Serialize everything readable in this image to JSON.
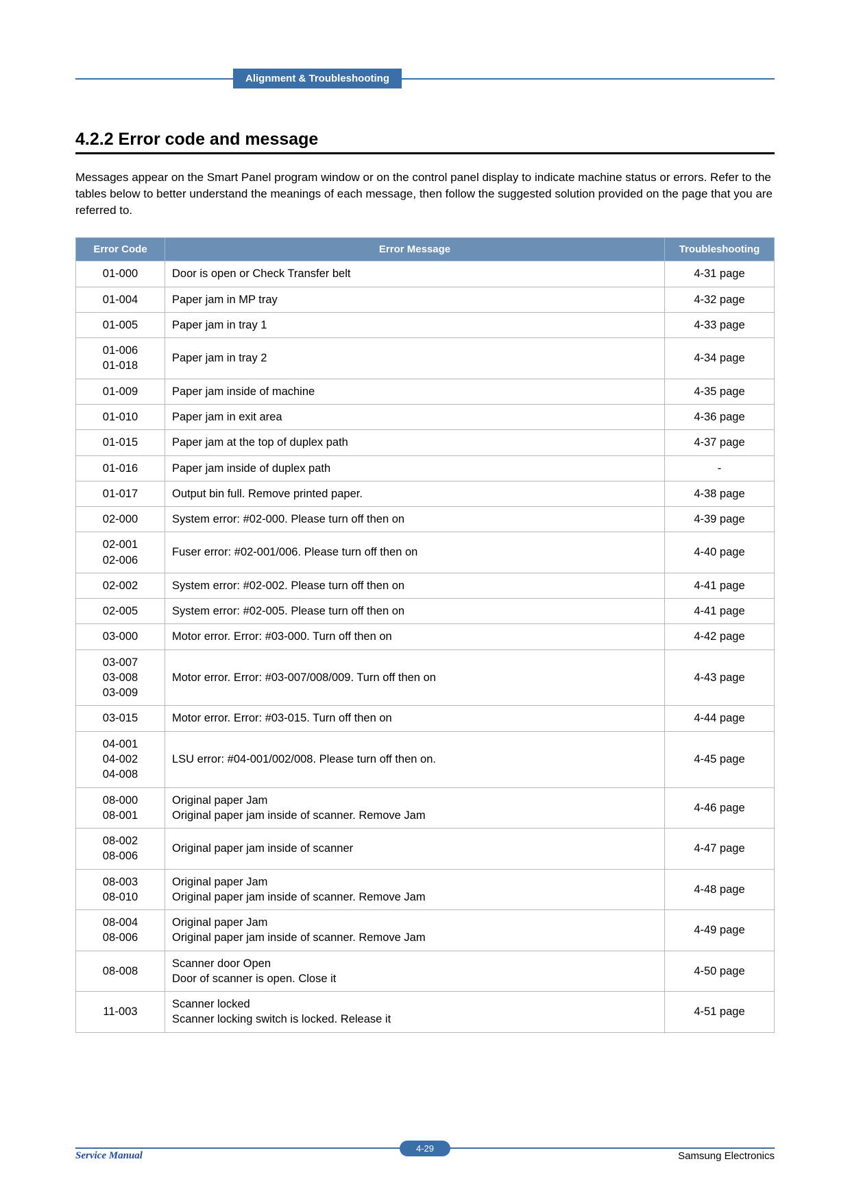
{
  "header": {
    "pill": "Alignment & Troubleshooting"
  },
  "section": {
    "title": "4.2.2 Error code and message",
    "intro": "Messages appear on the Smart Panel program window or on the control panel display to indicate machine status or errors. Refer to the tables below to better understand the meanings of each message, then follow the suggested solution provided on the page that you are referred to."
  },
  "table": {
    "columns": [
      "Error Code",
      "Error Message",
      "Troubleshooting"
    ],
    "rows": [
      {
        "code": "01-000",
        "msg": "Door is open or Check Transfer belt",
        "ts": "4-31 page"
      },
      {
        "code": "01-004",
        "msg": "Paper jam in MP tray",
        "ts": "4-32 page"
      },
      {
        "code": "01-005",
        "msg": "Paper jam in tray 1",
        "ts": "4-33 page"
      },
      {
        "code": "01-006\n01-018",
        "msg": "Paper jam in tray 2",
        "ts": "4-34 page"
      },
      {
        "code": "01-009",
        "msg": "Paper jam inside of machine",
        "ts": "4-35 page"
      },
      {
        "code": "01-010",
        "msg": "Paper jam in exit area",
        "ts": "4-36 page"
      },
      {
        "code": "01-015",
        "msg": "Paper jam at the top of duplex path",
        "ts": "4-37 page"
      },
      {
        "code": "01-016",
        "msg": "Paper jam inside of duplex path",
        "ts": "-"
      },
      {
        "code": "01-017",
        "msg": "Output bin full. Remove printed paper.",
        "ts": "4-38 page"
      },
      {
        "code": "02-000",
        "msg": "System error: #02-000. Please turn off then on",
        "ts": "4-39 page"
      },
      {
        "code": "02-001\n02-006",
        "msg": "Fuser error: #02-001/006. Please turn off then on",
        "ts": "4-40 page"
      },
      {
        "code": "02-002",
        "msg": "System error: #02-002. Please turn off then on",
        "ts": "4-41 page"
      },
      {
        "code": "02-005",
        "msg": "System error: #02-005. Please turn off then on",
        "ts": "4-41 page"
      },
      {
        "code": "03-000",
        "msg": "Motor error. Error: #03-000. Turn off then on",
        "ts": "4-42 page"
      },
      {
        "code": "03-007\n03-008\n03-009",
        "msg": "Motor error. Error: #03-007/008/009. Turn off then on",
        "ts": "4-43 page"
      },
      {
        "code": "03-015",
        "msg": "Motor error. Error: #03-015. Turn off then on",
        "ts": "4-44 page"
      },
      {
        "code": "04-001\n04-002\n04-008",
        "msg": "LSU error: #04-001/002/008. Please turn off then on.",
        "ts": "4-45 page"
      },
      {
        "code": "08-000\n08-001",
        "msg": "Original paper Jam\nOriginal paper jam inside of scanner. Remove Jam",
        "ts": "4-46 page"
      },
      {
        "code": "08-002\n08-006",
        "msg": "Original paper jam inside of scanner",
        "ts": "4-47 page"
      },
      {
        "code": "08-003\n08-010",
        "msg": "Original paper Jam\nOriginal paper jam inside of scanner. Remove Jam",
        "ts": "4-48 page"
      },
      {
        "code": "08-004\n08-006",
        "msg": "Original paper Jam\nOriginal paper jam inside of scanner. Remove Jam",
        "ts": "4-49 page"
      },
      {
        "code": "08-008",
        "msg": "Scanner door Open\nDoor of scanner  is open. Close it",
        "ts": "4-50 page"
      },
      {
        "code": "11-003",
        "msg": "Scanner locked\nScanner locking switch is locked. Release it",
        "ts": "4-51 page"
      }
    ]
  },
  "footer": {
    "left": "Service Manual",
    "page": "4-29",
    "right": "Samsung Electronics"
  },
  "style": {
    "accent_color": "#3b6fa8",
    "table_header_bg": "#6b8fb5",
    "table_border": "#b8b8b8",
    "footer_left_color": "#1f4aa3",
    "body_font_size": 17,
    "table_font_size": 16.5
  }
}
